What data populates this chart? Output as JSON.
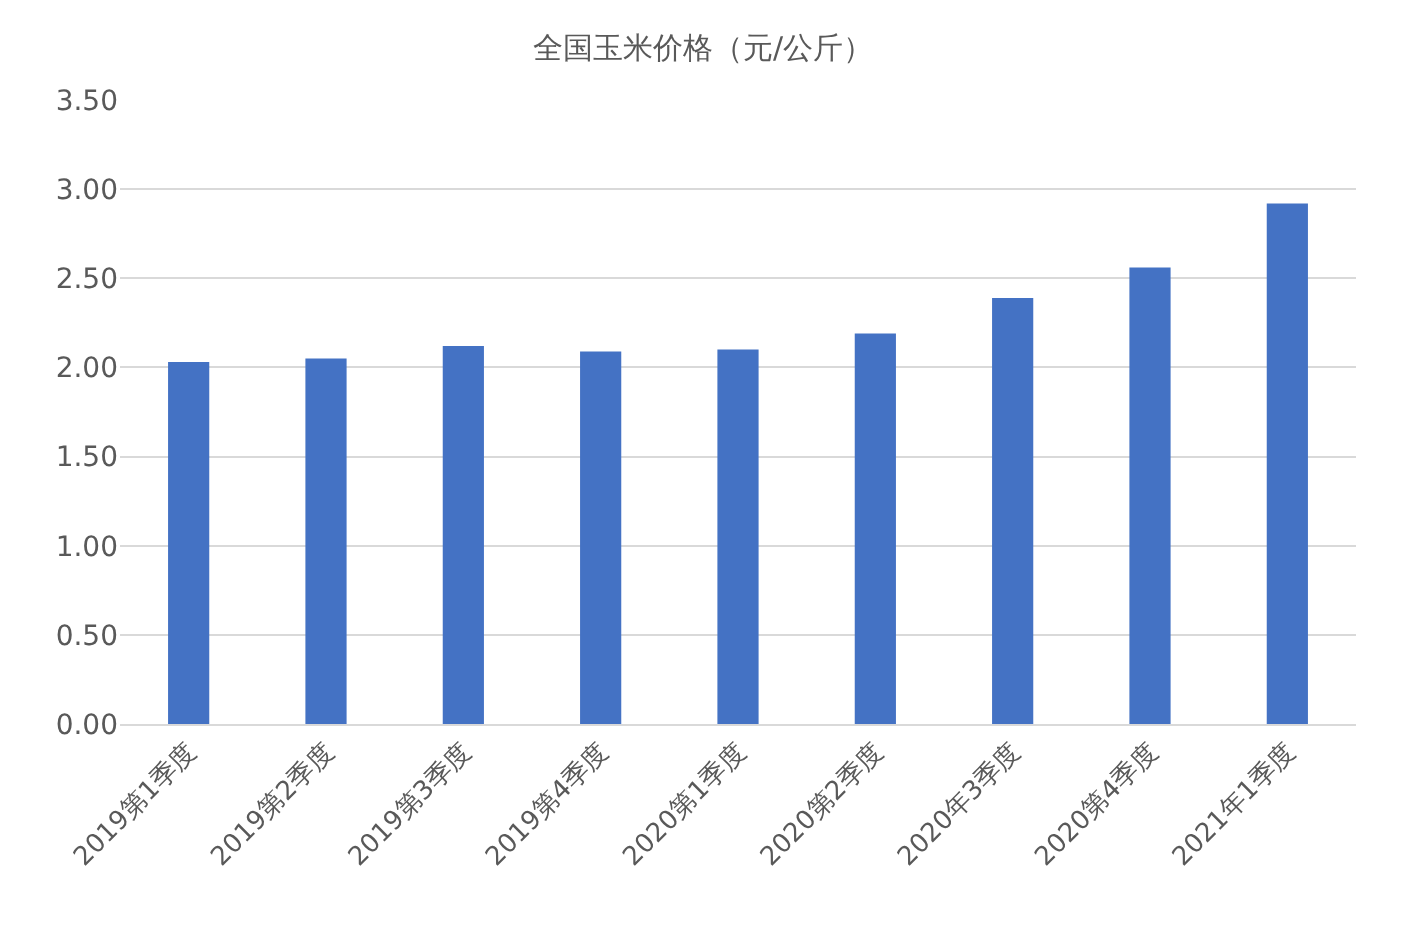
{
  "chart_data": {
    "type": "bar",
    "title": "全国玉米价格（元/公斤）",
    "categories": [
      "2019第1季度",
      "2019第2季度",
      "2019第3季度",
      "2019第4季度",
      "2020第1季度",
      "2020第2季度",
      "2020年3季度",
      "2020第4季度",
      "2021年1季度"
    ],
    "values": [
      2.03,
      2.05,
      2.12,
      2.09,
      2.1,
      2.19,
      2.39,
      2.56,
      2.92
    ],
    "color": "#4472c4",
    "ylim": [
      0,
      3.5
    ],
    "yticks": [
      {
        "value": 0,
        "label": "0.00"
      },
      {
        "value": 0.5,
        "label": "0.50"
      },
      {
        "value": 1,
        "label": "1.00"
      },
      {
        "value": 1.5,
        "label": "1.50"
      },
      {
        "value": 2,
        "label": "2.00"
      },
      {
        "value": 2.5,
        "label": "2.50"
      },
      {
        "value": 3,
        "label": "3.00"
      },
      {
        "value": 3.5,
        "label": "3.50"
      }
    ],
    "grid": "y"
  }
}
